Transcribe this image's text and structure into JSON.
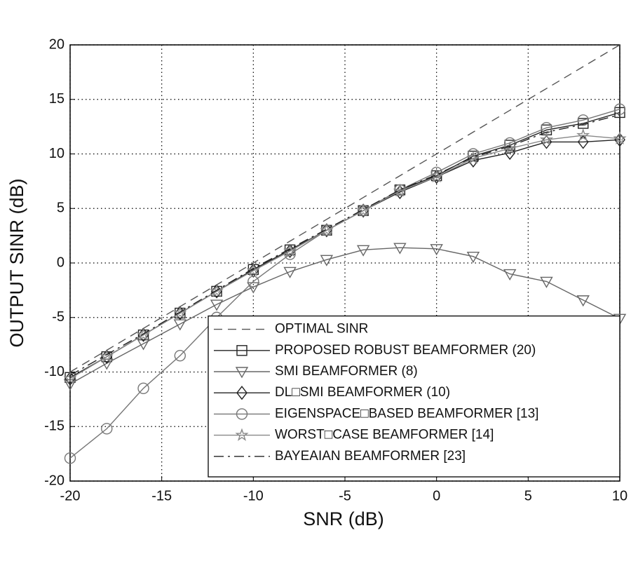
{
  "chart_data": {
    "type": "line",
    "xlabel": "SNR (dB)",
    "ylabel": "OUTPUT SINR (dB)",
    "x": [
      -20,
      -18,
      -16,
      -14,
      -12,
      -10,
      -8,
      -6,
      -4,
      -2,
      0,
      2,
      4,
      6,
      8,
      10
    ],
    "xlim": [
      -20,
      10
    ],
    "xticks": [
      -20,
      -15,
      -10,
      -5,
      0,
      5,
      10
    ],
    "ylim": [
      -20,
      20
    ],
    "yticks": [
      -20,
      -15,
      -10,
      -5,
      0,
      5,
      10,
      15,
      20
    ],
    "grid": true,
    "legend": "lower right",
    "series": [
      {
        "name": "OPTIMAL SINR",
        "color": "#555555",
        "dash": "dashed",
        "marker": "none",
        "values": [
          -10,
          -8,
          -6,
          -4,
          -2,
          0,
          2,
          4,
          6,
          8,
          10,
          12,
          14,
          16,
          18,
          20
        ]
      },
      {
        "name": "PROPOSED ROBUST BEAMFORMER (20)",
        "color": "#222222",
        "dash": "solid",
        "marker": "square",
        "values": [
          -10.5,
          -8.6,
          -6.6,
          -4.6,
          -2.6,
          -0.6,
          1.2,
          3.0,
          4.8,
          6.7,
          8.0,
          9.8,
          10.8,
          12.2,
          12.8,
          13.8
        ]
      },
      {
        "name": "SMI BEAMFORMER (8)",
        "color": "#666666",
        "dash": "solid",
        "marker": "triangle-down",
        "values": [
          -11.1,
          -9.2,
          -7.4,
          -5.6,
          -3.8,
          -2.2,
          -0.8,
          0.3,
          1.2,
          1.4,
          1.3,
          0.6,
          -1.0,
          -1.7,
          -3.4,
          -5.1
        ]
      },
      {
        "name": "DL□SMI BEAMFORMER (10)",
        "color": "#222222",
        "dash": "solid",
        "marker": "diamond",
        "values": [
          -10.6,
          -8.6,
          -6.6,
          -4.6,
          -2.6,
          -0.7,
          1.1,
          3.0,
          4.8,
          6.5,
          7.9,
          9.4,
          10.1,
          11.1,
          11.1,
          11.3
        ]
      },
      {
        "name": "EIGENSPACE□BASED BEAMFORMER [13]",
        "color": "#777777",
        "dash": "solid",
        "marker": "circle",
        "values": [
          -17.9,
          -15.2,
          -11.5,
          -8.5,
          -5.0,
          -1.7,
          0.8,
          3.0,
          4.8,
          6.7,
          8.3,
          10.0,
          11.0,
          12.4,
          13.1,
          14.1
        ]
      },
      {
        "name": "WORST□CASE BEAMFORMER [14]",
        "color": "#888888",
        "dash": "solid",
        "marker": "star",
        "values": [
          -10.6,
          -8.6,
          -6.6,
          -4.6,
          -2.6,
          -0.7,
          1.1,
          3.0,
          4.8,
          6.6,
          7.9,
          9.6,
          10.5,
          11.3,
          11.7,
          11.4
        ]
      },
      {
        "name": "BAYEAIAN BEAMFORMER [23]",
        "color": "#222222",
        "dash": "dashdot",
        "marker": "none",
        "values": [
          -10.3,
          -8.4,
          -6.5,
          -4.5,
          -2.5,
          -0.5,
          1.3,
          3.1,
          4.9,
          6.7,
          8.1,
          9.7,
          10.7,
          12.0,
          12.7,
          13.6
        ]
      }
    ]
  }
}
